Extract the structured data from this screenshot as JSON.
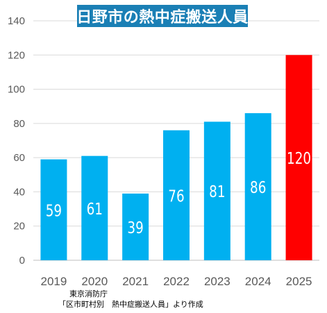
{
  "chart_data": {
    "type": "bar",
    "title": "日野市の熱中症搬送人員",
    "categories": [
      "2019",
      "2020",
      "2021",
      "2022",
      "2023",
      "2024",
      "2025"
    ],
    "values": [
      59,
      61,
      39,
      76,
      81,
      86,
      120
    ],
    "data_labels": [
      "59",
      "61",
      "39",
      "76",
      "81",
      "86",
      "120"
    ],
    "ylim": [
      0,
      140
    ],
    "yticks": [
      "0",
      "20",
      "40",
      "60",
      "80",
      "100",
      "120",
      "140"
    ],
    "grid": true,
    "legend": "none",
    "colors": {
      "bar": "#00b0f0",
      "highlight": "#ff0000",
      "title_bg": "#1a7fb5"
    },
    "highlight_category": "2025"
  },
  "source": {
    "line1": "東京消防庁",
    "line2": "「区市町村別　熱中症搬送人員」より作成"
  }
}
